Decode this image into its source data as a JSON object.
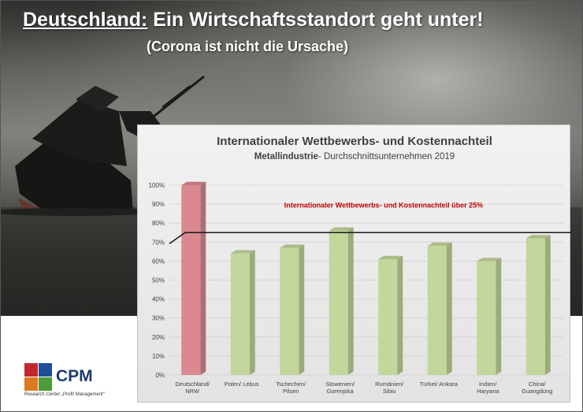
{
  "header": {
    "country": "Deutschland:",
    "title_rest": " Ein Wirtschaftsstandort geht unter!",
    "subtitle": "(Corona ist nicht die Ursache)"
  },
  "logo": {
    "name": "CPM",
    "tagline": "Research Center „Profit Management“",
    "colors": [
      "#c0282d",
      "#1f4e9a",
      "#e07a1e",
      "#4f9a3a"
    ]
  },
  "chart_data": {
    "type": "bar",
    "title": "Internationaler Wettbewerbs- und Kostennachteil",
    "subtitle_bold": "Metallindustrie",
    "subtitle_rest": "- Durchschnittsunternehmen 2019",
    "categories": [
      [
        "Deutschland/",
        "NRW"
      ],
      [
        "Polen/ Lebus"
      ],
      [
        "Tschechen/",
        "Pilsen"
      ],
      [
        "Slowenien/",
        "Gorenjska"
      ],
      [
        "Rumänien/",
        "Sibiu"
      ],
      [
        "Türkei/ Ankara"
      ],
      [
        "Indien/",
        "Haryana"
      ],
      [
        "China/",
        "Guangdong"
      ]
    ],
    "values": [
      100,
      64,
      67,
      76,
      61,
      68,
      60,
      72
    ],
    "bar_colors": [
      "#d9898f",
      "#c3d69b",
      "#c3d69b",
      "#c3d69b",
      "#c3d69b",
      "#c3d69b",
      "#c3d69b",
      "#c3d69b"
    ],
    "ylim": [
      0,
      100
    ],
    "yticks": [
      "0%",
      "10%",
      "20%",
      "30%",
      "40%",
      "50%",
      "60%",
      "70%",
      "80%",
      "90%",
      "100%"
    ],
    "threshold": {
      "value": 75,
      "label": "Internationaler Wettbewerbs- und Kostennachteil über 25%",
      "color": "#c00000"
    },
    "grid": true
  }
}
